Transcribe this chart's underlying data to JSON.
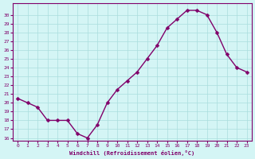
{
  "x": [
    0,
    1,
    2,
    3,
    4,
    5,
    6,
    7,
    8,
    9,
    10,
    11,
    12,
    13,
    14,
    15,
    16,
    17,
    18,
    19,
    20,
    21,
    22,
    23
  ],
  "y": [
    20.5,
    20.0,
    19.5,
    18.0,
    18.0,
    18.0,
    16.5,
    16.0,
    17.5,
    20.0,
    21.5,
    22.5,
    23.5,
    25.0,
    26.5,
    28.5,
    29.5,
    30.5,
    30.5,
    30.0,
    28.0,
    25.5,
    24.0,
    23.5
  ],
  "xlabel": "Windchill (Refroidissement éolien,°C)",
  "xlim": [
    -0.5,
    23.5
  ],
  "ylim": [
    16,
    31
  ],
  "yticks": [
    16,
    17,
    18,
    19,
    20,
    21,
    22,
    23,
    24,
    25,
    26,
    27,
    28,
    29,
    30
  ],
  "xticks": [
    0,
    1,
    2,
    3,
    4,
    5,
    6,
    7,
    8,
    9,
    10,
    11,
    12,
    13,
    14,
    15,
    16,
    17,
    18,
    19,
    20,
    21,
    22,
    23
  ],
  "line_color": "#80006a",
  "marker_color": "#80006a",
  "bg_color": "#d4f5f5",
  "grid_color": "#aadddd",
  "axis_label_color": "#80006a",
  "tick_color": "#80006a"
}
